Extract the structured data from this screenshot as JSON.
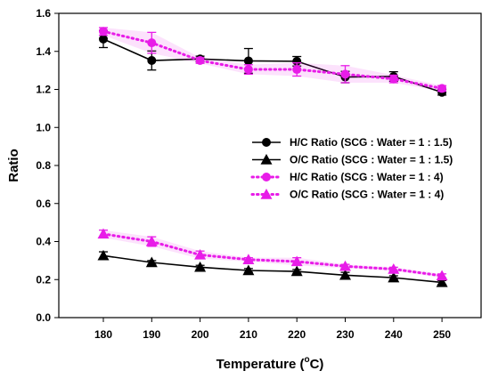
{
  "chart_data": {
    "type": "line",
    "xlabel": "Temperature (",
    "xlabel_sup": "o",
    "xlabel_tail": "C)",
    "ylabel": "Ratio",
    "categories": [
      180,
      190,
      200,
      210,
      220,
      230,
      240,
      250
    ],
    "x_tick_labels": [
      "180",
      "190",
      "200",
      "210",
      "220",
      "230",
      "240",
      "250"
    ],
    "y_tick_labels": [
      "0.0",
      "0.2",
      "0.4",
      "0.6",
      "0.8",
      "1.0",
      "1.2",
      "1.4",
      "1.6"
    ],
    "ylim": [
      0,
      1.6
    ],
    "y_ticks": [
      0,
      0.2,
      0.4,
      0.6,
      0.8,
      1.0,
      1.2,
      1.4,
      1.6
    ],
    "grid": false,
    "legend_position": "right",
    "series": [
      {
        "name": "H/C Ratio (SCG : Water = 1 : 1.5)",
        "color": "#000000",
        "line_style": "solid",
        "marker": "circle",
        "values": [
          1.465,
          1.352,
          1.36,
          1.35,
          1.348,
          1.265,
          1.268,
          1.185
        ],
        "errors": [
          0.045,
          0.05,
          0.015,
          0.065,
          0.025,
          0.03,
          0.025,
          0.015
        ]
      },
      {
        "name": "O/C Ratio (SCG : Water = 1 : 1.5)",
        "color": "#000000",
        "line_style": "solid",
        "marker": "triangle",
        "values": [
          0.326,
          0.29,
          0.265,
          0.248,
          0.243,
          0.223,
          0.21,
          0.185
        ],
        "errors": [
          0.02,
          0.01,
          0.01,
          0.01,
          0.01,
          0.015,
          0.01,
          0.01
        ]
      },
      {
        "name": "H/C Ratio (SCG : Water = 1 : 4)",
        "color": "#e81ce8",
        "line_style": "dotted",
        "marker": "circle",
        "values": [
          1.505,
          1.445,
          1.352,
          1.305,
          1.305,
          1.28,
          1.255,
          1.205
        ],
        "errors": [
          0.02,
          0.055,
          0.015,
          0.025,
          0.035,
          0.045,
          0.02,
          0.015
        ]
      },
      {
        "name": "O/C Ratio (SCG : Water = 1 : 4)",
        "color": "#e81ce8",
        "line_style": "dotted",
        "marker": "triangle",
        "values": [
          0.44,
          0.4,
          0.33,
          0.305,
          0.295,
          0.27,
          0.255,
          0.22
        ],
        "errors": [
          0.02,
          0.025,
          0.02,
          0.01,
          0.02,
          0.01,
          0.01,
          0.01
        ]
      }
    ]
  }
}
